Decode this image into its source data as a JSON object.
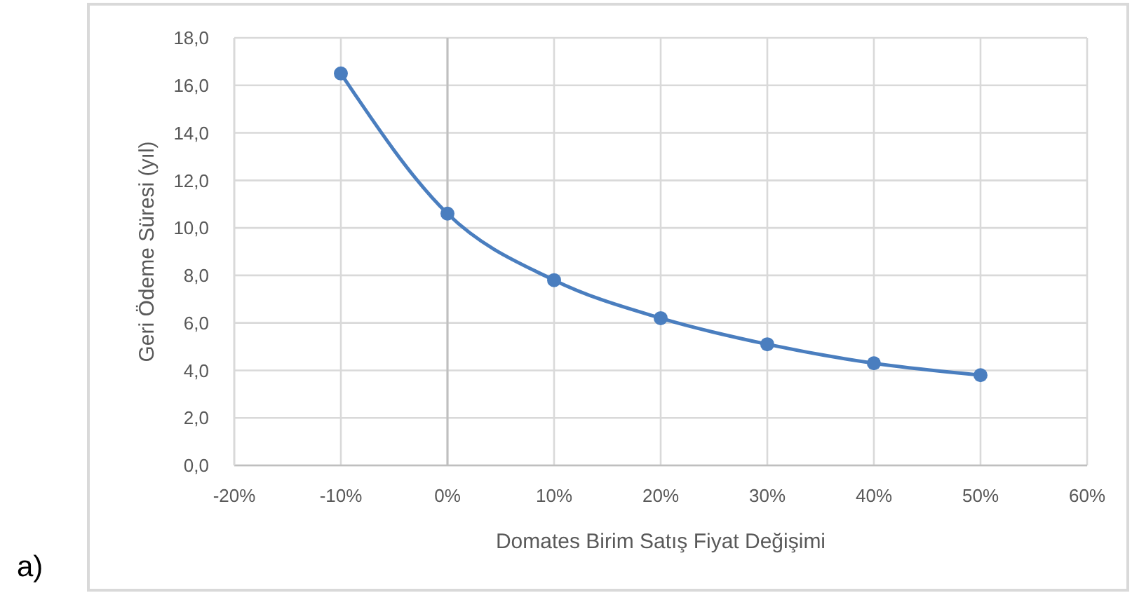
{
  "chart_data": {
    "type": "line",
    "xlabel": "Domates Birim Satış Fiyat Değişimi",
    "ylabel": "Geri Ödeme Süresi (yıl)",
    "annotations": [
      "a)"
    ],
    "x": [
      -10,
      0,
      10,
      20,
      30,
      40,
      50
    ],
    "values": [
      16.5,
      10.6,
      7.8,
      6.2,
      5.1,
      4.3,
      3.8
    ],
    "color": "#4a7ebf",
    "xlim": [
      -20,
      60
    ],
    "xticks": [
      {
        "value": -20,
        "label": "-20%"
      },
      {
        "value": -10,
        "label": "-10%"
      },
      {
        "value": 0,
        "label": "0%"
      },
      {
        "value": 10,
        "label": "10%"
      },
      {
        "value": 20,
        "label": "20%"
      },
      {
        "value": 30,
        "label": "30%"
      },
      {
        "value": 40,
        "label": "40%"
      },
      {
        "value": 50,
        "label": "50%"
      },
      {
        "value": 60,
        "label": "60%"
      }
    ],
    "ylim": [
      0,
      18
    ],
    "yticks": [
      {
        "value": 0,
        "label": "0,0"
      },
      {
        "value": 2,
        "label": "2,0"
      },
      {
        "value": 4,
        "label": "4,0"
      },
      {
        "value": 6,
        "label": "6,0"
      },
      {
        "value": 8,
        "label": "8,0"
      },
      {
        "value": 10,
        "label": "10,0"
      },
      {
        "value": 12,
        "label": "12,0"
      },
      {
        "value": 14,
        "label": "14,0"
      },
      {
        "value": 16,
        "label": "16,0"
      },
      {
        "value": 18,
        "label": "18,0"
      }
    ],
    "grid": true,
    "marker": "circle",
    "line_style": "solid",
    "ref_lines": [
      {
        "axis": "x",
        "value": 0,
        "color": "#bfbfbf"
      }
    ]
  }
}
